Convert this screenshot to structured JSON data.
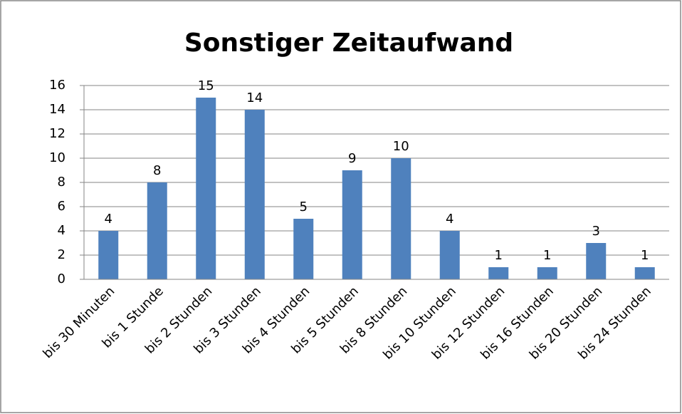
{
  "chart_data": {
    "type": "bar",
    "title": "Sonstiger Zeitaufwand",
    "categories": [
      "bis 30 Minuten",
      "bis 1 Stunde",
      "bis 2 Stunden",
      "bis 3 Stunden",
      "bis 4 Stunden",
      "bis 5 Stunden",
      "bis 8 Stunden",
      "bis 10 Stunden",
      "bis 12 Stunden",
      "bis 16 Stunden",
      "bis 20 Stunden",
      "bis 24 Stunden"
    ],
    "values": [
      4,
      8,
      15,
      14,
      5,
      9,
      10,
      4,
      1,
      1,
      3,
      1
    ],
    "color": "#4f81bd",
    "ylim": [
      0,
      16
    ],
    "yticks": [
      0,
      2,
      4,
      6,
      8,
      10,
      12,
      14,
      16
    ],
    "grid": true
  }
}
